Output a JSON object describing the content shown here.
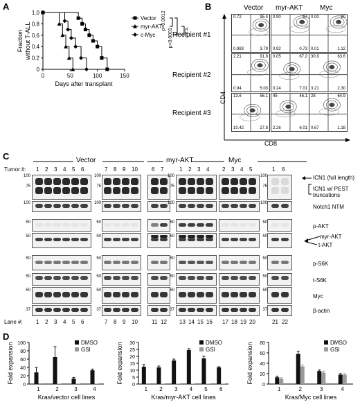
{
  "panels": {
    "A": "A",
    "B": "B",
    "C": "C",
    "D": "D"
  },
  "panelA": {
    "chart_data": {
      "type": "line",
      "step": true,
      "xlabel": "Days after transplant",
      "ylabel_line1": "Fraction",
      "ylabel_line2": "without T-ALL",
      "xlim": [
        0,
        150
      ],
      "ylim": [
        0,
        1.0
      ],
      "xticks": [
        "0",
        "50",
        "100",
        "150"
      ],
      "yticks": [
        "0",
        "0.2",
        "0.4",
        "0.6",
        "0.8",
        "1.0"
      ],
      "series": [
        {
          "name": "Vector",
          "marker": "square",
          "x": [
            0,
            65,
            72,
            78,
            85,
            92,
            100,
            108,
            118
          ],
          "y": [
            1.0,
            0.9,
            0.8,
            0.7,
            0.6,
            0.5,
            0.4,
            0.2,
            0.0
          ]
        },
        {
          "name": "myr-AKT",
          "marker": "triangle",
          "x": [
            0,
            30,
            36,
            42,
            48,
            55
          ],
          "y": [
            1.0,
            0.8,
            0.6,
            0.4,
            0.2,
            0.0
          ]
        },
        {
          "name": "c-Myc",
          "marker": "diamond",
          "x": [
            0,
            40,
            46,
            52,
            60,
            70,
            80
          ],
          "y": [
            1.0,
            0.85,
            0.7,
            0.55,
            0.4,
            0.2,
            0.0
          ]
        }
      ],
      "pvals": [
        "p=0.0012",
        "p<0.0001",
        "n.s."
      ]
    }
  },
  "panelB": {
    "columns": [
      "Vector",
      "myr-AKT",
      "Myc"
    ],
    "rows": [
      "Recipient #1",
      "Recipient #2",
      "Recipient #3"
    ],
    "xaxis": "CD8",
    "yaxis": "CD4",
    "quadrants": [
      [
        [
          "0.72",
          "95.4",
          "0.983",
          "3.79"
        ],
        [
          "0.90",
          "97",
          "0.92",
          "0.73"
        ],
        [
          "0.00",
          "90",
          "0.01",
          "1.12"
        ]
      ],
      [
        [
          "2.21",
          "91.8",
          "0.94",
          "5.03"
        ],
        [
          "0.05",
          "67.2",
          "0.24",
          "7.01"
        ],
        [
          "30.9",
          "63.6",
          "3.21",
          "2.30"
        ]
      ],
      [
        [
          "13.6",
          "56.1",
          "10.42",
          "27.8"
        ],
        [
          "45",
          "46.1",
          "2.26",
          "6.01"
        ],
        [
          "28",
          "64.9",
          "0.67",
          "1.18"
        ]
      ]
    ]
  },
  "panelC": {
    "group_labels": [
      "Vector",
      "myr-AKT",
      "Myc"
    ],
    "tumor_label": "Tumor #:",
    "tumors": [
      "1",
      "2",
      "3",
      "4",
      "5",
      "6",
      "7",
      "8",
      "9",
      "10",
      "6",
      "7",
      "1",
      "2",
      "3",
      "4",
      "2",
      "3",
      "4",
      "5",
      "1",
      "6"
    ],
    "lane_label": "Lane #:",
    "lanes": [
      "1",
      "2",
      "3",
      "4",
      "5",
      "6",
      "7",
      "8",
      "9",
      "10",
      "11",
      "12",
      "13",
      "14",
      "15",
      "16",
      "17",
      "18",
      "19",
      "20",
      "21",
      "22"
    ],
    "row_labels": [
      "ICN1 (full length)",
      "ICN1 w/ PEST truncations",
      "Notch1 NTM",
      "p-AKT",
      "myr-AKT",
      "t-AKT",
      "p-S6K",
      "t-S6K",
      "Myc",
      "β-actin"
    ],
    "mw_markers": [
      [
        "100",
        "75"
      ],
      [
        "100"
      ],
      [
        "50"
      ],
      [
        "50"
      ],
      [
        "50"
      ],
      [
        "50"
      ],
      [
        "50"
      ],
      [
        "37"
      ]
    ]
  },
  "panelD": {
    "legend": [
      "DMSO",
      "GSI"
    ],
    "colors": {
      "dmso": "#111111",
      "gsi": "#9a9a9a"
    },
    "charts": [
      {
        "chart_data": {
          "type": "bar",
          "xlabel": "Kras/vector cell lines",
          "ylabel": "Fold expansion",
          "categories": [
            "1",
            "2",
            "3",
            "4"
          ],
          "ylim": [
            0,
            100
          ],
          "yticks": [
            "0",
            "20",
            "40",
            "60",
            "80",
            "100"
          ],
          "series": [
            {
              "name": "DMSO",
              "values": [
                28,
                65,
                13,
                33
              ],
              "errors": [
                12,
                25,
                3,
                3
              ]
            },
            {
              "name": "GSI",
              "values": [
                2,
                1,
                1,
                1
              ],
              "errors": [
                0,
                0,
                0,
                0
              ]
            }
          ]
        }
      },
      {
        "chart_data": {
          "type": "bar",
          "xlabel": "Kras/myr-AKT cell lines",
          "ylabel": "Fold expansion",
          "categories": [
            "1",
            "2",
            "3",
            "4",
            "5",
            "6"
          ],
          "ylim": [
            0,
            30
          ],
          "yticks": [
            "0",
            "5",
            "10",
            "15",
            "20",
            "25",
            "30"
          ],
          "series": [
            {
              "name": "DMSO",
              "values": [
                12.5,
                12,
                17,
                24.5,
                18.5,
                12
              ],
              "errors": [
                1.5,
                1,
                1,
                1,
                1.5,
                0.5
              ]
            },
            {
              "name": "GSI",
              "values": [
                0.5,
                0.3,
                0.3,
                0.3,
                0.3,
                0.3
              ],
              "errors": [
                0,
                0,
                0,
                0,
                0,
                0
              ]
            }
          ]
        }
      },
      {
        "chart_data": {
          "type": "bar",
          "xlabel": "Kras/Myc cell lines",
          "ylabel": "Fold expansion",
          "categories": [
            "1",
            "2",
            "3",
            "4"
          ],
          "ylim": [
            0,
            80
          ],
          "yticks": [
            "0",
            "20",
            "40",
            "60",
            "80"
          ],
          "series": [
            {
              "name": "DMSO",
              "values": [
                13,
                58,
                25,
                18
              ],
              "errors": [
                2,
                5,
                2,
                2
              ]
            },
            {
              "name": "GSI",
              "values": [
                10,
                34,
                22,
                18
              ],
              "errors": [
                2,
                3,
                3,
                2
              ]
            }
          ]
        }
      }
    ]
  }
}
